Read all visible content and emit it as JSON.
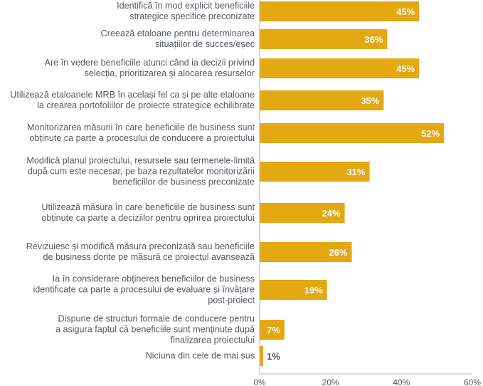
{
  "chart_data": {
    "type": "bar",
    "orientation": "horizontal",
    "categories": [
      [
        "Identifică în mod explicit beneficiile",
        "strategice specifice preconizate"
      ],
      [
        "Creează etaloane pentru determinarea",
        "situațiilor de succes/eșec"
      ],
      [
        "Are în vedere beneficiile atunci când ia decizii privind",
        "selecția, prioritizarea și alocarea resurselor"
      ],
      [
        "Utilizează etaloanele MRB în același fel ca și pe alte etaloane",
        "la crearea portofoliilor de proiecte strategice echilibrate"
      ],
      [
        "Monitorizarea măsurii în care beneficiile de business sunt",
        "obținute ca parte a procesului de conducere a proiectului"
      ],
      [
        "Modifică planul proiectului, resursele sau termenele-limită",
        "după cum este necesar, pe baza rezultatelor monitorizării",
        "beneficiilor de business preconizate"
      ],
      [
        "Utilizează măsura în care beneficiile de business sunt",
        "obținute ca parte a deciziilor pentru oprirea proiectului"
      ],
      [
        "Revizuiesc și modifică măsura preconizată sau beneficiile",
        "de business dorite pe măsură ce proiectul avansează"
      ],
      [
        "Ia în considerare obținerea beneficiilor de business",
        "identificate ca parte a procesului de evaluare și învățare",
        "post-proiect"
      ],
      [
        "Dispune de structuri formale de conducere pentru",
        "a asigura faptul că beneficiile sunt menținute după",
        "finalizarea proiectului"
      ],
      [
        "Niciuna din cele de mai sus"
      ]
    ],
    "values": [
      45,
      36,
      45,
      35,
      52,
      31,
      24,
      26,
      19,
      7,
      1
    ],
    "data_labels": [
      "45%",
      "36%",
      "45%",
      "35%",
      "52%",
      "31%",
      "24%",
      "26%",
      "19%",
      "7%",
      "1%"
    ],
    "xlim": [
      0,
      60
    ],
    "xticks": [
      "0%",
      "20%",
      "40%",
      "60%"
    ],
    "xtick_values": [
      0,
      20,
      40,
      60
    ],
    "grid": false,
    "legend": "none",
    "bar_color": "#E3A812",
    "label_color": "#555a60"
  }
}
